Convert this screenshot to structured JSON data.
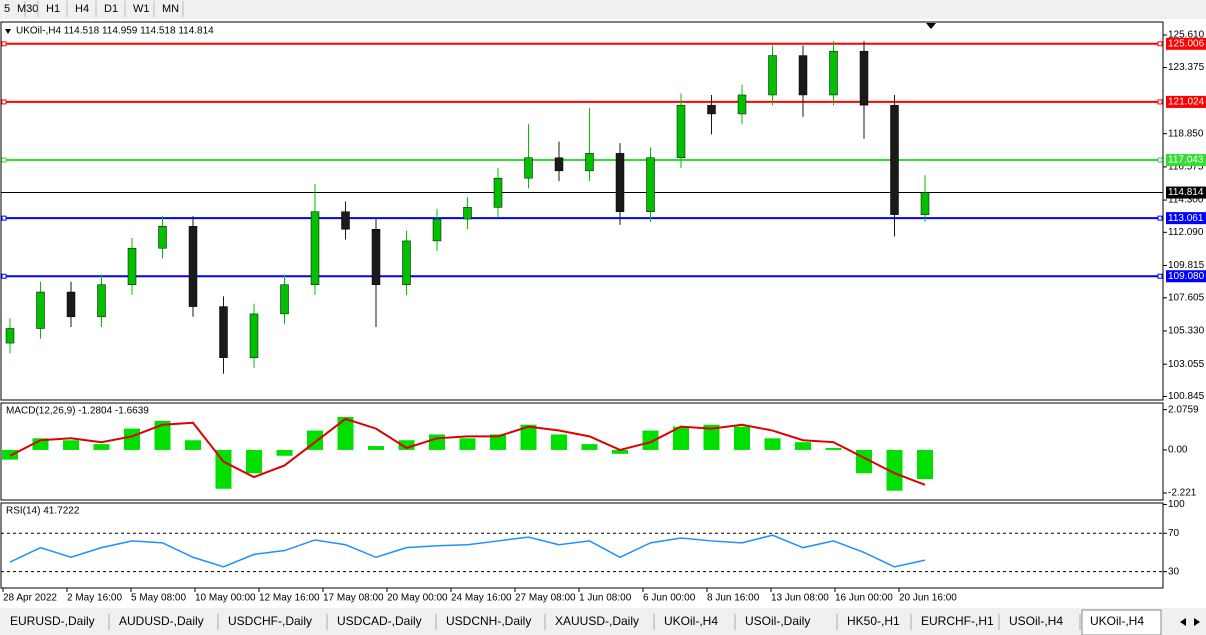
{
  "toolbar": [
    "5",
    "M30",
    "H1",
    "H4",
    "D1",
    "W1",
    "MN"
  ],
  "chart_data": [
    {
      "type": "candlestick",
      "title": "UKOil-,H4  114.518 114.959 114.518 114.814",
      "open": [
        104.5,
        105.5,
        108.0,
        106.3,
        108.5,
        111.0,
        112.5,
        107.0,
        103.5,
        106.5,
        108.5,
        113.5,
        112.3,
        108.5,
        111.5,
        113.0,
        113.8,
        115.8,
        117.2,
        116.3,
        117.5,
        113.5,
        117.2,
        120.8,
        120.2,
        121.5,
        124.2,
        121.5,
        124.5,
        120.8,
        113.3
      ],
      "high": [
        106.2,
        108.7,
        108.7,
        109.2,
        111.7,
        113.2,
        113.2,
        107.7,
        107.2,
        109.2,
        115.4,
        114.2,
        113.0,
        112.2,
        113.7,
        114.5,
        116.5,
        119.5,
        118.3,
        120.6,
        118.2,
        117.9,
        121.6,
        121.5,
        122.2,
        124.9,
        124.9,
        125.2,
        125.2,
        121.5,
        116.0
      ],
      "low": [
        103.8,
        104.8,
        105.6,
        105.6,
        107.8,
        110.3,
        106.3,
        102.4,
        102.8,
        105.8,
        107.8,
        111.6,
        105.6,
        107.8,
        110.8,
        112.3,
        113.1,
        115.1,
        115.6,
        115.6,
        112.6,
        112.8,
        116.5,
        118.8,
        119.5,
        120.8,
        120.0,
        120.8,
        118.5,
        111.8,
        112.8
      ],
      "close": [
        105.5,
        108.0,
        106.3,
        108.5,
        111.0,
        112.5,
        107.0,
        103.5,
        106.5,
        108.5,
        113.5,
        112.3,
        108.5,
        111.5,
        113.0,
        113.8,
        115.8,
        117.2,
        116.3,
        117.5,
        113.5,
        117.2,
        120.8,
        120.2,
        121.5,
        124.2,
        121.5,
        124.5,
        120.8,
        113.3,
        114.8
      ],
      "up_color": "#00c000",
      "down_color": "#1a1a1a",
      "ylim": [
        100.6,
        126.5
      ],
      "yticks": [
        {
          "value": 125.61,
          "label": "125.610"
        },
        123.375,
        {
          "value": 118.85,
          "label": "118.850"
        },
        116.575,
        {
          "value": 114.3,
          "label": "114.300"
        },
        {
          "value": 112.09,
          "label": "112.090"
        },
        109.815,
        107.605,
        {
          "value": 105.33,
          "label": "105.330"
        },
        103.055,
        100.845
      ],
      "levels": [
        {
          "value": 125.006,
          "color": "#ff0000"
        },
        {
          "value": 121.024,
          "color": "#ff0000"
        },
        {
          "value": 117.043,
          "color": "#33dd33"
        },
        {
          "value": 113.061,
          "color": "#0000ff"
        },
        {
          "value": 109.08,
          "label": "109.080",
          "color": "#0000ff"
        }
      ],
      "last_price": {
        "value": 114.814,
        "color": "#000000"
      },
      "x_labels": [
        "28 Apr 2022",
        "2 May 16:00",
        "5 May 08:00",
        "10 May 00:00",
        "12 May 16:00",
        "17 May 08:00",
        "20 May 00:00",
        "24 May 16:00",
        "27 May 08:00",
        "1 Jun 08:00",
        "6 Jun 00:00",
        "8 Jun 16:00",
        "13 Jun 08:00",
        "16 Jun 00:00",
        "20 Jun 16:00"
      ]
    },
    {
      "type": "bar",
      "title": "MACD(12,26,9) -1.2804 -1.6639",
      "color": "#00e000",
      "values": [
        -0.5,
        0.6,
        0.5,
        0.3,
        1.1,
        1.5,
        0.5,
        -2.0,
        -1.2,
        -0.3,
        1.0,
        1.7,
        0.2,
        0.5,
        0.8,
        0.6,
        0.8,
        1.3,
        0.8,
        0.3,
        -0.2,
        1.0,
        1.2,
        1.3,
        1.2,
        0.6,
        0.4,
        0.1,
        -1.2,
        -2.1,
        -1.5
      ],
      "signal": {
        "color": "#dd0000",
        "values": [
          -0.3,
          0.5,
          0.6,
          0.4,
          0.7,
          1.3,
          1.4,
          -0.6,
          -1.4,
          -0.8,
          0.4,
          1.6,
          1.1,
          0.1,
          0.6,
          0.7,
          0.7,
          1.2,
          1.0,
          0.7,
          0.0,
          0.4,
          1.2,
          1.1,
          1.3,
          1.0,
          0.5,
          0.4,
          -0.4,
          -1.2,
          -1.8
        ]
      },
      "ylim": [
        -2.58,
        2.42
      ],
      "yticks": [
        2.0759,
        {
          "value": 0,
          "label": "0.00"
        },
        -2.221
      ]
    },
    {
      "type": "line",
      "title": "RSI(14) 41.7222",
      "color": "#1e90ff",
      "values": [
        40,
        55,
        45,
        55,
        62,
        60,
        45,
        35,
        48,
        52,
        63,
        58,
        45,
        55,
        57,
        58,
        62,
        66,
        58,
        62,
        45,
        60,
        65,
        62,
        60,
        68,
        55,
        62,
        50,
        35,
        42
      ],
      "ylim": [
        13,
        101.5
      ],
      "yticks": [
        100,
        70,
        30
      ],
      "levels": [
        70,
        30
      ]
    }
  ],
  "tabs": [
    "EURUSD-,Daily",
    "AUDUSD-,Daily",
    "USDCHF-,Daily",
    "USDCAD-,Daily",
    "USDCNH-,Daily",
    "XAUUSD-,Daily",
    "UKOil-,H4",
    "USOil-,Daily",
    "HK50-,H1",
    "EURCHF-,H1",
    "USOil-,H4",
    "UKOil-,H4"
  ],
  "active_tab": 11
}
